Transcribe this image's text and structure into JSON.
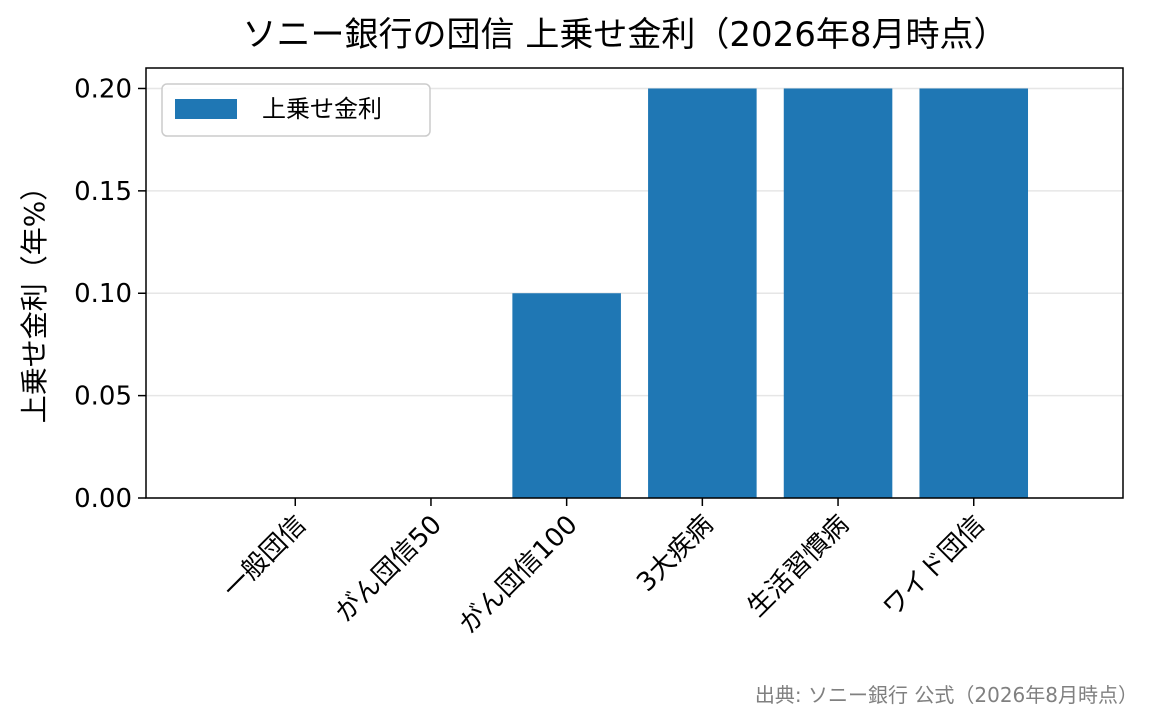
{
  "chart_data": {
    "type": "bar",
    "title": "ソニー銀行の団信 上乗せ金利（2026年8月時点）",
    "xlabel": "",
    "ylabel": "上乗せ金利（年%）",
    "categories": [
      "一般団信",
      "がん団信50",
      "がん団信100",
      "3大疾病",
      "生活習慣病",
      "ワイド団信"
    ],
    "series": [
      {
        "name": "上乗せ金利",
        "values": [
          0.0,
          0.0,
          0.1,
          0.2,
          0.2,
          0.2
        ],
        "color": "#1f77b4"
      }
    ],
    "ylim": [
      0,
      0.21
    ],
    "yticks": [
      0.0,
      0.05,
      0.1,
      0.15,
      0.2
    ],
    "ytick_labels": [
      "0.00",
      "0.05",
      "0.10",
      "0.15",
      "0.20"
    ],
    "grid": "y",
    "legend": "top-left"
  },
  "source_note": "出典: ソニー銀行 公式（2026年8月時点）"
}
